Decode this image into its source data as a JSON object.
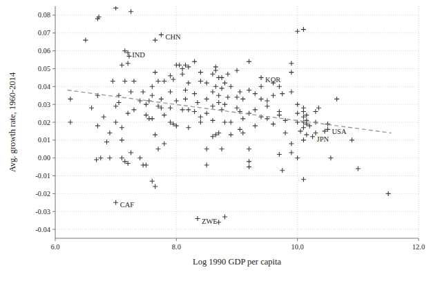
{
  "chart_data": {
    "type": "scatter",
    "x_label": "Log 1990 GDP per capita",
    "y_label": "Avg. growth rate, 1960-2014",
    "xlim": [
      6,
      12
    ],
    "ylim": [
      -0.045,
      0.085
    ],
    "xticks": [
      {
        "value": 6,
        "label": "6.0"
      },
      {
        "value": 8,
        "label": "8.0"
      },
      {
        "value": 10,
        "label": "10.0"
      },
      {
        "value": 12,
        "label": "12.0"
      }
    ],
    "yticks": [
      -0.04,
      -0.03,
      -0.02,
      -0.01,
      {
        "value": 0,
        "label": "0.00"
      },
      0.01,
      0.02,
      0.03,
      0.04,
      0.05,
      0.06,
      0.07,
      0.08
    ],
    "grid": true,
    "series": [
      {
        "type": "scatter",
        "marker": "plus",
        "color": "#3a3a3a",
        "x": [
          6.25,
          6.25,
          6.5,
          6.6,
          6.7,
          6.72,
          6.7,
          6.7,
          6.68,
          6.75,
          6.8,
          6.85,
          6.9,
          6.9,
          6.95,
          7.0,
          7.0,
          7.0,
          7.0,
          7.05,
          7.05,
          7.1,
          7.1,
          7.1,
          7.1,
          7.15,
          7.15,
          7.15,
          7.2,
          7.22,
          7.2,
          7.2,
          7.2,
          7.25,
          7.25,
          7.25,
          7.3,
          7.3,
          7.4,
          7.4,
          7.45,
          7.45,
          7.5,
          7.5,
          7.5,
          7.55,
          7.55,
          7.6,
          7.6,
          7.6,
          7.6,
          7.65,
          7.65,
          7.65,
          7.65,
          7.7,
          7.7,
          7.7,
          7.75,
          7.75,
          7.75,
          7.8,
          7.8,
          7.8,
          7.9,
          7.9,
          7.9,
          7.9,
          7.95,
          7.95,
          8.0,
          8.0,
          8.0,
          8.05,
          8.1,
          8.1,
          8.1,
          8.15,
          8.15,
          8.15,
          8.2,
          8.2,
          8.2,
          8.2,
          8.3,
          8.3,
          8.3,
          8.35,
          8.35,
          8.4,
          8.4,
          8.4,
          8.4,
          8.5,
          8.5,
          8.5,
          8.5,
          8.5,
          8.6,
          8.6,
          8.6,
          8.6,
          8.6,
          8.65,
          8.65,
          8.65,
          8.65,
          8.7,
          8.7,
          8.7,
          8.7,
          8.7,
          8.75,
          8.75,
          8.75,
          8.75,
          8.8,
          8.8,
          8.8,
          8.8,
          8.85,
          8.85,
          8.9,
          8.9,
          8.9,
          9.0,
          9.0,
          9.0,
          9.05,
          9.05,
          9.05,
          9.1,
          9.1,
          9.1,
          9.2,
          9.2,
          9.2,
          9.2,
          9.2,
          9.2,
          9.3,
          9.3,
          9.3,
          9.4,
          9.4,
          9.4,
          9.4,
          9.5,
          9.5,
          9.5,
          9.6,
          9.6,
          9.6,
          9.7,
          9.7,
          9.7,
          9.7,
          9.75,
          9.75,
          9.8,
          9.8,
          9.9,
          9.9,
          9.9,
          9.9,
          9.9,
          10.0,
          10.0,
          10.0,
          10.0,
          10.0,
          10.05,
          10.1,
          10.1,
          10.1,
          10.1,
          10.1,
          10.1,
          10.1,
          10.1,
          10.15,
          10.15,
          10.15,
          10.15,
          10.2,
          10.25,
          10.3,
          10.3,
          10.3,
          10.35,
          10.5,
          10.45,
          10.5,
          10.55,
          10.65,
          10.9,
          11.0,
          11.5
        ],
        "values": [
          0.033,
          0.02,
          0.066,
          0.028,
          0.078,
          0.079,
          0.035,
          0.018,
          -0.001,
          0.0,
          0.023,
          0.009,
          0.0,
          0.014,
          0.043,
          0.084,
          0.029,
          0.02,
          -0.025,
          0.031,
          0.035,
          0.052,
          0.01,
          0.017,
          0.0,
          0.06,
          0.043,
          -0.002,
          0.059,
          0.057,
          -0.003,
          0.053,
          0.025,
          0.082,
          0.003,
          0.037,
          0.027,
          0.043,
          0.032,
          0.0,
          0.037,
          -0.004,
          -0.004,
          0.03,
          0.024,
          0.022,
          0.032,
          0.022,
          0.04,
          0.035,
          -0.013,
          0.048,
          0.066,
          -0.016,
          0.013,
          0.029,
          0.043,
          0.005,
          0.069,
          0.033,
          0.028,
          0.043,
          0.008,
          0.024,
          0.037,
          0.046,
          0.028,
          0.02,
          0.044,
          0.019,
          0.052,
          0.032,
          0.018,
          0.052,
          0.027,
          0.047,
          0.05,
          0.038,
          0.052,
          0.033,
          0.027,
          0.017,
          0.051,
          0.042,
          0.054,
          0.036,
          0.026,
          0.031,
          -0.034,
          0.048,
          0.043,
          0.02,
          0.023,
          0.042,
          0.033,
          0.025,
          0.005,
          -0.004,
          0.047,
          0.037,
          0.029,
          0.021,
          0.012,
          0.051,
          0.049,
          0.04,
          0.013,
          0.045,
          0.031,
          0.035,
          0.014,
          -0.036,
          0.045,
          0.039,
          0.027,
          0.005,
          0.042,
          0.03,
          0.02,
          -0.033,
          0.047,
          0.034,
          0.04,
          0.02,
          0.013,
          0.049,
          0.034,
          0.028,
          0.037,
          0.026,
          0.016,
          0.033,
          0.022,
          0.014,
          0.054,
          0.038,
          0.025,
          0.005,
          -0.002,
          -0.005,
          0.036,
          0.018,
          0.027,
          0.045,
          0.04,
          0.033,
          0.023,
          0.032,
          0.029,
          0.022,
          0.042,
          0.035,
          0.019,
          0.04,
          0.026,
          0.024,
          0.002,
          0.036,
          -0.007,
          0.021,
          0.014,
          0.053,
          0.048,
          0.037,
          0.008,
          0.003,
          0.071,
          0.03,
          0.025,
          0.02,
          0.0,
          0.015,
          0.072,
          0.028,
          0.026,
          0.023,
          0.02,
          0.017,
          0.01,
          -0.012,
          0.024,
          0.021,
          0.019,
          0.013,
          0.018,
          0.012,
          0.026,
          0.02,
          0.014,
          0.028,
          0.019,
          0.015,
          0.016,
          0.0,
          0.033,
          0.01,
          -0.006,
          -0.02
        ]
      },
      {
        "type": "line",
        "line_style": "dashed",
        "color": "#9a9a9a",
        "x": [
          6.2,
          11.55
        ],
        "values": [
          0.038,
          0.014
        ]
      }
    ],
    "annotations": [
      {
        "text": "CHN",
        "x": 7.75,
        "y": 0.069
      },
      {
        "text": "IND",
        "x": 7.2,
        "y": 0.059
      },
      {
        "text": "KOR",
        "x": 9.4,
        "y": 0.045
      },
      {
        "text": "USA",
        "x": 10.5,
        "y": 0.016
      },
      {
        "text": "JPN",
        "x": 10.25,
        "y": 0.012
      },
      {
        "text": "CAF",
        "x": 7.0,
        "y": -0.025
      },
      {
        "text": "ZWE",
        "x": 8.35,
        "y": -0.034
      }
    ]
  }
}
